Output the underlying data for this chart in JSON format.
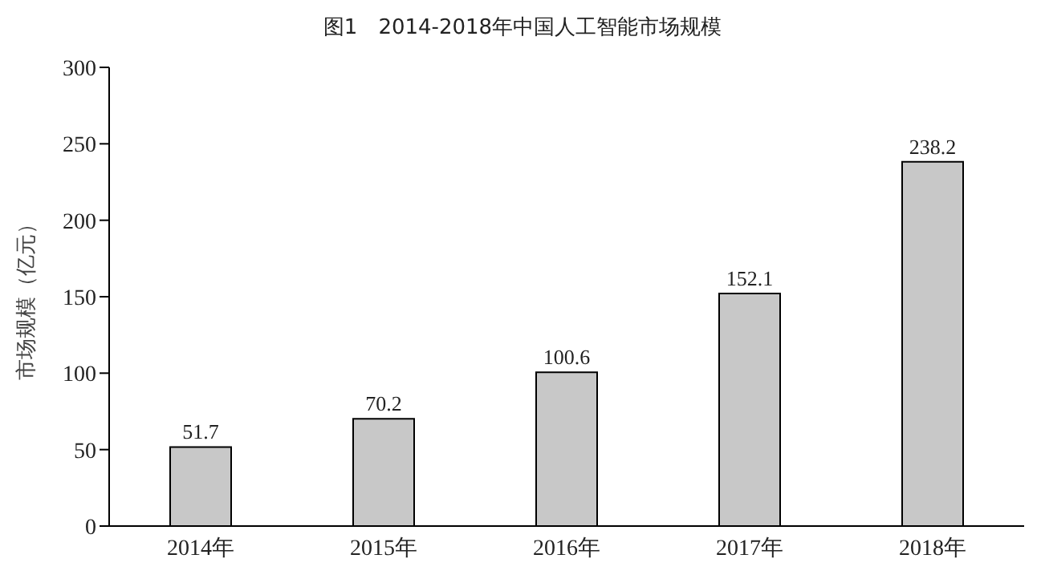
{
  "chart_data": {
    "type": "bar",
    "title": "图1　2014-2018年中国人工智能市场规模",
    "ylabel": "市场规模（亿元）",
    "categories": [
      "2014年",
      "2015年",
      "2016年",
      "2017年",
      "2018年"
    ],
    "values": [
      51.7,
      70.2,
      100.6,
      152.1,
      238.2
    ],
    "color": "#c8c8c8",
    "ylim": [
      0,
      300
    ],
    "yticks": [
      0,
      50,
      100,
      150,
      200,
      250,
      300
    ],
    "data_labels": true,
    "grid": false
  }
}
